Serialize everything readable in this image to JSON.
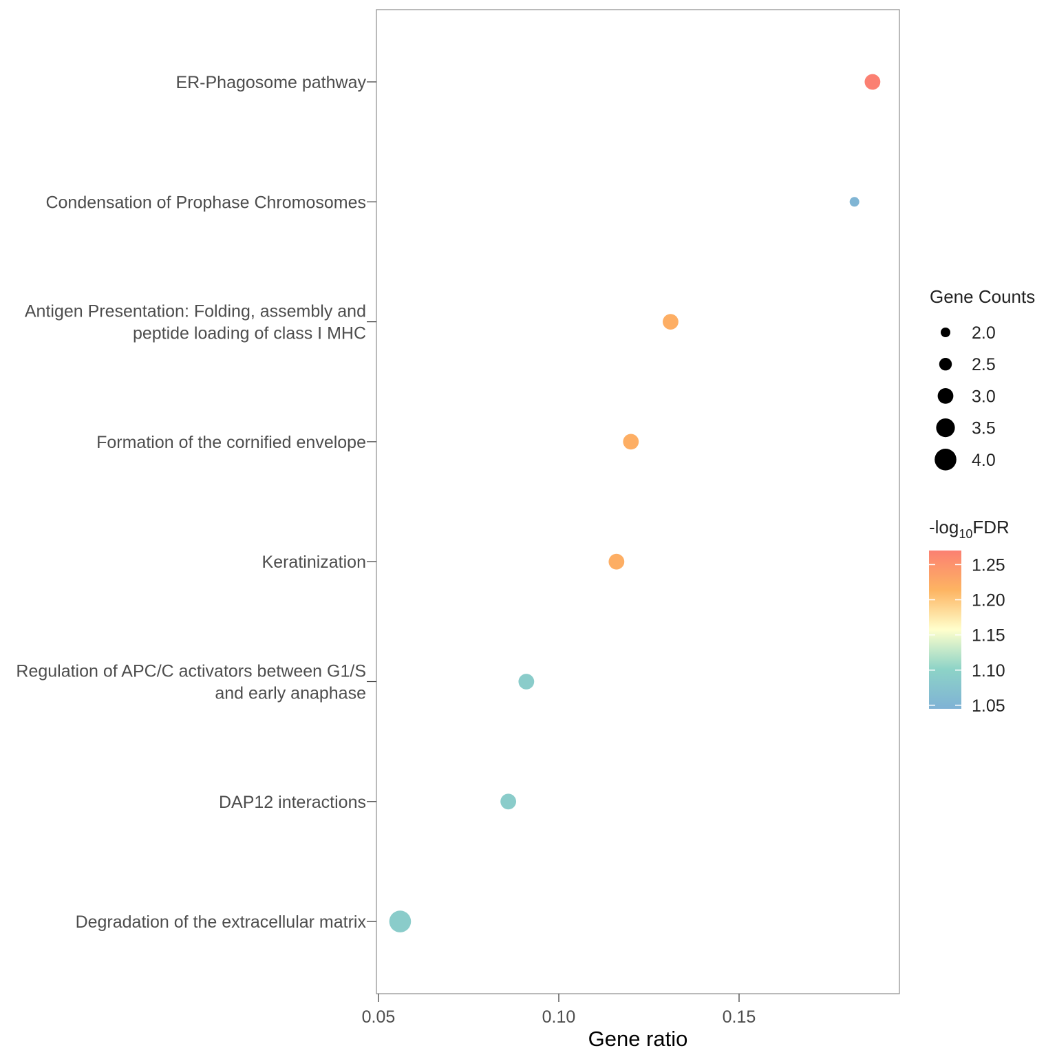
{
  "chart_data": {
    "type": "scatter",
    "title": "",
    "xlabel": "Gene ratio",
    "ylabel": "",
    "xlim": [
      0.05,
      0.193
    ],
    "x_ticks": [
      0.05,
      0.1,
      0.15
    ],
    "x_tick_labels": [
      "0.05",
      "0.10",
      "0.15"
    ],
    "categories": [
      [
        "ER-Phagosome pathway"
      ],
      [
        "Condensation of Prophase Chromosomes"
      ],
      [
        "Antigen Presentation: Folding, assembly and",
        "peptide loading of class I MHC"
      ],
      [
        "Formation of the cornified envelope"
      ],
      [
        "Keratinization"
      ],
      [
        "Regulation of APC/C activators between G1/S",
        "and early anaphase"
      ],
      [
        "DAP12 interactions"
      ],
      [
        "Degradation of the extracellular matrix"
      ]
    ],
    "points": [
      {
        "gene_ratio": 0.187,
        "gene_counts": 3,
        "neg_log10_fdr": 1.27
      },
      {
        "gene_ratio": 0.182,
        "gene_counts": 2,
        "neg_log10_fdr": 1.05
      },
      {
        "gene_ratio": 0.131,
        "gene_counts": 3,
        "neg_log10_fdr": 1.22
      },
      {
        "gene_ratio": 0.12,
        "gene_counts": 3,
        "neg_log10_fdr": 1.22
      },
      {
        "gene_ratio": 0.116,
        "gene_counts": 3,
        "neg_log10_fdr": 1.22
      },
      {
        "gene_ratio": 0.091,
        "gene_counts": 3,
        "neg_log10_fdr": 1.09
      },
      {
        "gene_ratio": 0.086,
        "gene_counts": 3,
        "neg_log10_fdr": 1.09
      },
      {
        "gene_ratio": 0.056,
        "gene_counts": 4,
        "neg_log10_fdr": 1.09
      }
    ],
    "size_legend": {
      "title": "Gene Counts",
      "values": [
        2.0,
        2.5,
        3.0,
        3.5,
        4.0
      ],
      "labels": [
        "2.0",
        "2.5",
        "3.0",
        "3.5",
        "4.0"
      ]
    },
    "color_legend": {
      "title_prefix": "-log",
      "title_subscript": "10",
      "title_suffix": "FDR",
      "range": [
        1.045,
        1.27
      ],
      "ticks": [
        1.05,
        1.1,
        1.15,
        1.2,
        1.25
      ],
      "tick_labels": [
        "1.05",
        "1.10",
        "1.15",
        "1.20",
        "1.25"
      ],
      "colors": [
        "#7FB2D5",
        "#8DD3C7",
        "#FFFFCC",
        "#FDB462",
        "#FB8072"
      ]
    }
  }
}
